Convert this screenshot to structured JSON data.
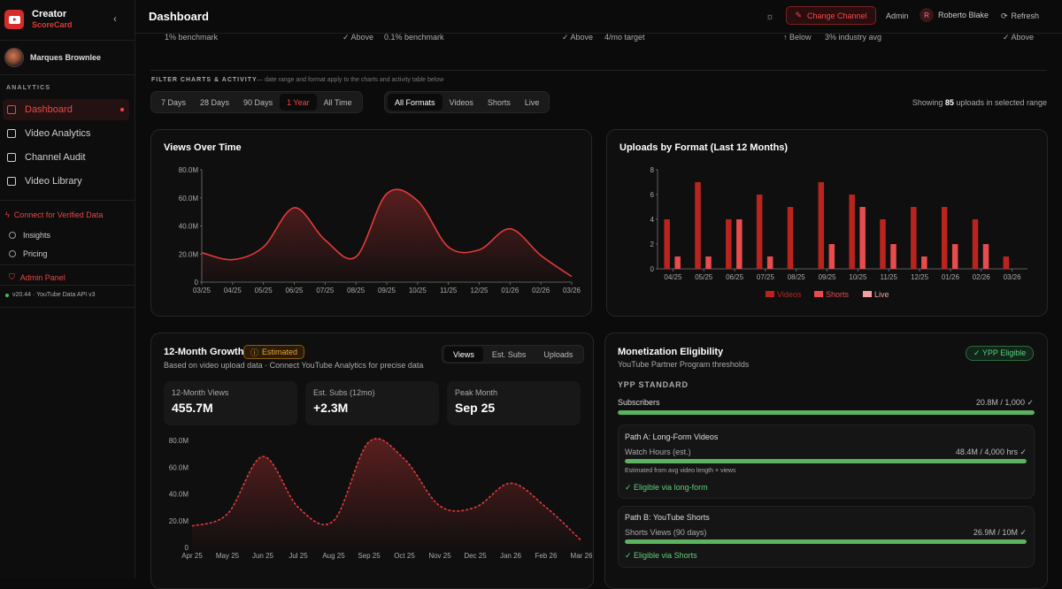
{
  "brand": {
    "line1": "Creator",
    "line2": "ScoreCard"
  },
  "user": {
    "name": "Marques Brownlee"
  },
  "sidebar": {
    "section": "ANALYTICS",
    "items": [
      {
        "label": "Dashboard",
        "icon": "grid-icon"
      },
      {
        "label": "Video Analytics",
        "icon": "bar-chart-icon"
      },
      {
        "label": "Channel Audit",
        "icon": "clipboard-icon"
      },
      {
        "label": "Video Library",
        "icon": "video-icon"
      }
    ],
    "connect": "Connect for Verified Data",
    "insights": "Insights",
    "pricing": "Pricing",
    "admin_panel": "Admin Panel",
    "version": "v20.44 · YouTube Data API v3"
  },
  "topbar": {
    "title": "Dashboard",
    "change_channel": "Change Channel",
    "admin": "Admin",
    "user_initial": "R",
    "user_name": "Roberto Blake",
    "refresh": "Refresh"
  },
  "benchmarks": [
    "1% benchmark",
    "✓ Above",
    "0.1% benchmark",
    "✓ Above",
    "4/mo target",
    "↑ Below",
    "3% industry avg",
    "✓ Above"
  ],
  "filters": {
    "label": "FILTER CHARTS & ACTIVITY",
    "sub": "— date range and format apply to the charts and activity table below",
    "ranges": [
      "7 Days",
      "28 Days",
      "90 Days",
      "1 Year",
      "All Time"
    ],
    "formats": [
      "All Formats",
      "Videos",
      "Shorts",
      "Live"
    ],
    "showing_pre": "Showing",
    "showing_count": "85",
    "showing_post": "uploads in selected range"
  },
  "views_chart": {
    "title": "Views Over Time"
  },
  "uploads_chart": {
    "title": "Uploads by Format (Last 12 Months)"
  },
  "growth": {
    "title": "12-Month Growth",
    "badge": "Estimated",
    "subtitle": "Based on video upload data · Connect YouTube Analytics for precise data",
    "tabs": [
      "Views",
      "Est. Subs",
      "Uploads"
    ],
    "stats": [
      {
        "label": "12-Month Views",
        "value": "455.7M"
      },
      {
        "label": "Est. Subs (12mo)",
        "value": "+2.3M"
      },
      {
        "label": "Peak Month",
        "value": "Sep 25"
      }
    ]
  },
  "monetization": {
    "title": "Monetization Eligibility",
    "subtitle": "YouTube Partner Program thresholds",
    "badge": "✓ YPP Eligible",
    "standard": "YPP STANDARD",
    "subs_label": "Subscribers",
    "subs_value": "20.8M / 1,000 ✓",
    "subs_progress": 1.0,
    "path_a": {
      "title": "Path A: Long-Form Videos",
      "label": "Watch Hours (est.)",
      "value": "48.4M / 4,000 hrs ✓",
      "progress": 1.0,
      "note": "Estimated from avg video length × views",
      "status": "✓ Eligible via long-form"
    },
    "path_b": {
      "title": "Path B: YouTube Shorts",
      "label": "Shorts Views (90 days)",
      "value": "26.9M / 10M ✓",
      "progress": 1.0,
      "status": "✓ Eligible via Shorts"
    }
  },
  "chart_data": [
    {
      "type": "area",
      "title": "Views Over Time",
      "categories": [
        "03/25",
        "04/25",
        "05/25",
        "06/25",
        "07/25",
        "08/25",
        "09/25",
        "10/25",
        "11/25",
        "12/25",
        "01/26",
        "02/26",
        "03/26"
      ],
      "values": [
        21,
        16,
        25,
        53,
        30,
        18,
        63,
        58,
        25,
        23,
        38,
        19,
        4
      ],
      "ylim": [
        0,
        80
      ],
      "yticks": [
        "0",
        "20.0M",
        "40.0M",
        "60.0M",
        "80.0M"
      ],
      "color": "#e33b3b"
    },
    {
      "type": "bar",
      "title": "Uploads by Format (Last 12 Months)",
      "categories": [
        "04/25",
        "05/25",
        "06/25",
        "07/25",
        "08/25",
        "09/25",
        "10/25",
        "11/25",
        "12/25",
        "01/26",
        "02/26",
        "03/26"
      ],
      "series": [
        {
          "name": "Videos",
          "values": [
            4,
            7,
            4,
            6,
            5,
            7,
            6,
            4,
            5,
            5,
            4,
            1
          ],
          "color": "#b9241f"
        },
        {
          "name": "Shorts",
          "values": [
            1,
            1,
            4,
            1,
            0,
            2,
            5,
            2,
            1,
            2,
            2,
            0
          ],
          "color": "#e84c4c"
        },
        {
          "name": "Live",
          "values": [
            0,
            0,
            0,
            0,
            0,
            0,
            0,
            0,
            0,
            0,
            0,
            0
          ],
          "color": "#f2a0a0"
        }
      ],
      "ylim": [
        0,
        8
      ],
      "yticks": [
        "0",
        "2",
        "4",
        "6",
        "8"
      ]
    },
    {
      "type": "area",
      "title": "12-Month Growth",
      "categories": [
        "Apr 25",
        "May 25",
        "Jun 25",
        "Jul 25",
        "Aug 25",
        "Sep 25",
        "Oct 25",
        "Nov 25",
        "Dec 25",
        "Jan 26",
        "Feb 26",
        "Mar 26"
      ],
      "values": [
        16,
        25,
        68,
        30,
        20,
        79,
        66,
        31,
        30,
        48,
        30,
        5
      ],
      "ylim": [
        0,
        80
      ],
      "yticks": [
        "0",
        "20.0M",
        "40.0M",
        "60.0M",
        "80.0M"
      ],
      "color": "#e33b3b",
      "style": "dashed"
    }
  ]
}
